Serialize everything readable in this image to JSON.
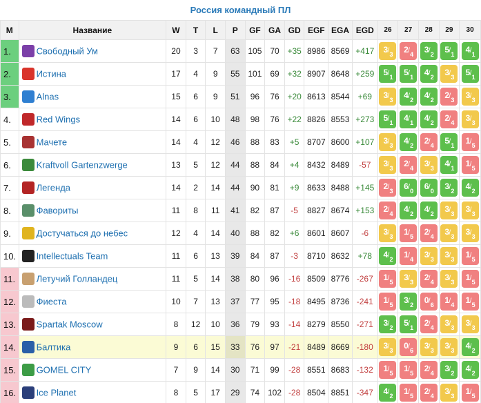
{
  "title": "Россия командный ПЛ",
  "headers": [
    "M",
    "Название",
    "W",
    "T",
    "L",
    "P",
    "GF",
    "GA",
    "GD",
    "EGF",
    "EGA",
    "EGD",
    "26",
    "27",
    "28",
    "29",
    "30"
  ],
  "rows": [
    {
      "pos": "1.",
      "name": "Свободный Ум",
      "logo": "purple-shield-logo",
      "w": "20",
      "t": "3",
      "l": "7",
      "p": "63",
      "gf": "105",
      "ga": "70",
      "gd": "+35",
      "egf": "8986",
      "ega": "8569",
      "egd": "+417",
      "zone": "green",
      "results": [
        {
          "a": "3",
          "b": "3",
          "r": "draw"
        },
        {
          "a": "2",
          "b": "4",
          "r": "loss"
        },
        {
          "a": "3",
          "b": "2",
          "r": "win"
        },
        {
          "a": "5",
          "b": "1",
          "r": "win"
        },
        {
          "a": "4",
          "b": "1",
          "r": "win"
        }
      ]
    },
    {
      "pos": "2.",
      "name": "Истина",
      "logo": "red-truth-logo",
      "w": "17",
      "t": "4",
      "l": "9",
      "p": "55",
      "gf": "101",
      "ga": "69",
      "gd": "+32",
      "egf": "8907",
      "ega": "8648",
      "egd": "+259",
      "zone": "green",
      "results": [
        {
          "a": "5",
          "b": "1",
          "r": "win"
        },
        {
          "a": "5",
          "b": "1",
          "r": "win"
        },
        {
          "a": "4",
          "b": "2",
          "r": "win"
        },
        {
          "a": "3",
          "b": "3",
          "r": "draw"
        },
        {
          "a": "5",
          "b": "1",
          "r": "win"
        }
      ]
    },
    {
      "pos": "3.",
      "name": "Alnas",
      "logo": "blue-swirl-logo",
      "w": "15",
      "t": "6",
      "l": "9",
      "p": "51",
      "gf": "96",
      "ga": "76",
      "gd": "+20",
      "egf": "8613",
      "ega": "8544",
      "egd": "+69",
      "zone": "green",
      "results": [
        {
          "a": "3",
          "b": "3",
          "r": "draw"
        },
        {
          "a": "4",
          "b": "2",
          "r": "win"
        },
        {
          "a": "4",
          "b": "2",
          "r": "win"
        },
        {
          "a": "2",
          "b": "3",
          "r": "loss"
        },
        {
          "a": "3",
          "b": "3",
          "r": "draw"
        }
      ]
    },
    {
      "pos": "4.",
      "name": "Red Wings",
      "logo": "red-wings-logo",
      "w": "14",
      "t": "6",
      "l": "10",
      "p": "48",
      "gf": "98",
      "ga": "76",
      "gd": "+22",
      "egf": "8826",
      "ega": "8553",
      "egd": "+273",
      "zone": "",
      "results": [
        {
          "a": "5",
          "b": "1",
          "r": "win"
        },
        {
          "a": "4",
          "b": "1",
          "r": "win"
        },
        {
          "a": "4",
          "b": "2",
          "r": "win"
        },
        {
          "a": "2",
          "b": "4",
          "r": "loss"
        },
        {
          "a": "3",
          "b": "3",
          "r": "draw"
        }
      ]
    },
    {
      "pos": "5.",
      "name": "Мачете",
      "logo": "machete-logo",
      "w": "14",
      "t": "4",
      "l": "12",
      "p": "46",
      "gf": "88",
      "ga": "83",
      "gd": "+5",
      "egf": "8707",
      "ega": "8600",
      "egd": "+107",
      "zone": "",
      "results": [
        {
          "a": "3",
          "b": "3",
          "r": "draw"
        },
        {
          "a": "4",
          "b": "2",
          "r": "win"
        },
        {
          "a": "2",
          "b": "4",
          "r": "loss"
        },
        {
          "a": "5",
          "b": "1",
          "r": "win"
        },
        {
          "a": "1",
          "b": "5",
          "r": "loss"
        }
      ]
    },
    {
      "pos": "6.",
      "name": "Kraftvoll Gartenzwerge",
      "logo": "gnome-logo",
      "w": "13",
      "t": "5",
      "l": "12",
      "p": "44",
      "gf": "88",
      "ga": "84",
      "gd": "+4",
      "egf": "8432",
      "ega": "8489",
      "egd": "-57",
      "zone": "",
      "results": [
        {
          "a": "3",
          "b": "3",
          "r": "draw"
        },
        {
          "a": "2",
          "b": "4",
          "r": "loss"
        },
        {
          "a": "3",
          "b": "3",
          "r": "draw"
        },
        {
          "a": "4",
          "b": "1",
          "r": "win"
        },
        {
          "a": "1",
          "b": "5",
          "r": "loss"
        }
      ]
    },
    {
      "pos": "7.",
      "name": "Легенда",
      "logo": "legend-logo",
      "w": "14",
      "t": "2",
      "l": "14",
      "p": "44",
      "gf": "90",
      "ga": "81",
      "gd": "+9",
      "egf": "8633",
      "ega": "8488",
      "egd": "+145",
      "zone": "",
      "results": [
        {
          "a": "2",
          "b": "3",
          "r": "loss"
        },
        {
          "a": "6",
          "b": "0",
          "r": "win"
        },
        {
          "a": "6",
          "b": "0",
          "r": "win"
        },
        {
          "a": "3",
          "b": "2",
          "r": "win"
        },
        {
          "a": "4",
          "b": "2",
          "r": "win"
        }
      ]
    },
    {
      "pos": "8.",
      "name": "Фавориты",
      "logo": "favorites-logo",
      "w": "11",
      "t": "8",
      "l": "11",
      "p": "41",
      "gf": "82",
      "ga": "87",
      "gd": "-5",
      "egf": "8827",
      "ega": "8674",
      "egd": "+153",
      "zone": "",
      "results": [
        {
          "a": "2",
          "b": "4",
          "r": "loss"
        },
        {
          "a": "4",
          "b": "2",
          "r": "win"
        },
        {
          "a": "4",
          "b": "2",
          "r": "win"
        },
        {
          "a": "3",
          "b": "3",
          "r": "draw"
        },
        {
          "a": "3",
          "b": "3",
          "r": "draw"
        }
      ]
    },
    {
      "pos": "9.",
      "name": "Достучаться до небес",
      "logo": "yellow-logo",
      "w": "12",
      "t": "4",
      "l": "14",
      "p": "40",
      "gf": "88",
      "ga": "82",
      "gd": "+6",
      "egf": "8601",
      "ega": "8607",
      "egd": "-6",
      "zone": "",
      "results": [
        {
          "a": "3",
          "b": "3",
          "r": "draw"
        },
        {
          "a": "1",
          "b": "5",
          "r": "loss"
        },
        {
          "a": "2",
          "b": "4",
          "r": "loss"
        },
        {
          "a": "3",
          "b": "3",
          "r": "draw"
        },
        {
          "a": "3",
          "b": "3",
          "r": "draw"
        }
      ]
    },
    {
      "pos": "10.",
      "name": "Intellectuals Team",
      "logo": "dark-mask-logo",
      "w": "11",
      "t": "6",
      "l": "13",
      "p": "39",
      "gf": "84",
      "ga": "87",
      "gd": "-3",
      "egf": "8710",
      "ega": "8632",
      "egd": "+78",
      "zone": "",
      "results": [
        {
          "a": "4",
          "b": "2",
          "r": "win"
        },
        {
          "a": "1",
          "b": "4",
          "r": "loss"
        },
        {
          "a": "3",
          "b": "3",
          "r": "draw"
        },
        {
          "a": "3",
          "b": "3",
          "r": "draw"
        },
        {
          "a": "1",
          "b": "5",
          "r": "loss"
        }
      ]
    },
    {
      "pos": "11.",
      "name": "Летучий Голландец",
      "logo": "dutchman-logo",
      "w": "11",
      "t": "5",
      "l": "14",
      "p": "38",
      "gf": "80",
      "ga": "96",
      "gd": "-16",
      "egf": "8509",
      "ega": "8776",
      "egd": "-267",
      "zone": "red",
      "results": [
        {
          "a": "1",
          "b": "5",
          "r": "loss"
        },
        {
          "a": "3",
          "b": "3",
          "r": "draw"
        },
        {
          "a": "2",
          "b": "4",
          "r": "loss"
        },
        {
          "a": "3",
          "b": "3",
          "r": "draw"
        },
        {
          "a": "1",
          "b": "5",
          "r": "loss"
        }
      ]
    },
    {
      "pos": "12.",
      "name": "Фиеста",
      "logo": "fiesta-logo",
      "w": "10",
      "t": "7",
      "l": "13",
      "p": "37",
      "gf": "77",
      "ga": "95",
      "gd": "-18",
      "egf": "8495",
      "ega": "8736",
      "egd": "-241",
      "zone": "red",
      "results": [
        {
          "a": "1",
          "b": "5",
          "r": "loss"
        },
        {
          "a": "3",
          "b": "2",
          "r": "win"
        },
        {
          "a": "0",
          "b": "6",
          "r": "loss"
        },
        {
          "a": "1",
          "b": "4",
          "r": "loss"
        },
        {
          "a": "1",
          "b": "5",
          "r": "loss"
        }
      ]
    },
    {
      "pos": "13.",
      "name": "Spartak Moscow",
      "logo": "spartak-logo",
      "w": "8",
      "t": "12",
      "l": "10",
      "p": "36",
      "gf": "79",
      "ga": "93",
      "gd": "-14",
      "egf": "8279",
      "ega": "8550",
      "egd": "-271",
      "zone": "red",
      "results": [
        {
          "a": "3",
          "b": "2",
          "r": "win"
        },
        {
          "a": "5",
          "b": "1",
          "r": "win"
        },
        {
          "a": "2",
          "b": "4",
          "r": "loss"
        },
        {
          "a": "3",
          "b": "3",
          "r": "draw"
        },
        {
          "a": "3",
          "b": "3",
          "r": "draw"
        }
      ]
    },
    {
      "pos": "14.",
      "name": "Балтика",
      "logo": "baltika-logo",
      "w": "9",
      "t": "6",
      "l": "15",
      "p": "33",
      "gf": "76",
      "ga": "97",
      "gd": "-21",
      "egf": "8489",
      "ega": "8669",
      "egd": "-180",
      "zone": "red",
      "highlight": true,
      "results": [
        {
          "a": "3",
          "b": "3",
          "r": "draw"
        },
        {
          "a": "0",
          "b": "6",
          "r": "loss"
        },
        {
          "a": "3",
          "b": "3",
          "r": "draw"
        },
        {
          "a": "3",
          "b": "3",
          "r": "draw"
        },
        {
          "a": "4",
          "b": "2",
          "r": "win"
        }
      ]
    },
    {
      "pos": "15.",
      "name": "GOMEL CITY",
      "logo": "gomel-logo",
      "w": "7",
      "t": "9",
      "l": "14",
      "p": "30",
      "gf": "71",
      "ga": "99",
      "gd": "-28",
      "egf": "8551",
      "ega": "8683",
      "egd": "-132",
      "zone": "red",
      "results": [
        {
          "a": "1",
          "b": "5",
          "r": "loss"
        },
        {
          "a": "1",
          "b": "5",
          "r": "loss"
        },
        {
          "a": "2",
          "b": "4",
          "r": "loss"
        },
        {
          "a": "3",
          "b": "2",
          "r": "win"
        },
        {
          "a": "4",
          "b": "2",
          "r": "win"
        }
      ]
    },
    {
      "pos": "16.",
      "name": "Ice Planet",
      "logo": "ice-planet-logo",
      "w": "8",
      "t": "5",
      "l": "17",
      "p": "29",
      "gf": "74",
      "ga": "102",
      "gd": "-28",
      "egf": "8504",
      "ega": "8851",
      "egd": "-347",
      "zone": "red",
      "results": [
        {
          "a": "4",
          "b": "2",
          "r": "win"
        },
        {
          "a": "1",
          "b": "5",
          "r": "loss"
        },
        {
          "a": "2",
          "b": "4",
          "r": "loss"
        },
        {
          "a": "3",
          "b": "3",
          "r": "draw"
        },
        {
          "a": "1",
          "b": "5",
          "r": "loss"
        }
      ]
    }
  ],
  "logo_colors": {
    "purple-shield-logo": "#7b3fa8",
    "red-truth-logo": "#d9342b",
    "blue-swirl-logo": "#2f7fd1",
    "red-wings-logo": "#c0282a",
    "machete-logo": "#a83232",
    "gnome-logo": "#3b8a3b",
    "legend-logo": "#b32424",
    "favorites-logo": "#5a8f6a",
    "yellow-logo": "#e0b41f",
    "dark-mask-logo": "#222222",
    "dutchman-logo": "#c8a070",
    "fiesta-logo": "#bbbbbb",
    "spartak-logo": "#7a1a1a",
    "baltika-logo": "#2a5fa8",
    "gomel-logo": "#3c9c46",
    "ice-planet-logo": "#2b3f7a"
  }
}
